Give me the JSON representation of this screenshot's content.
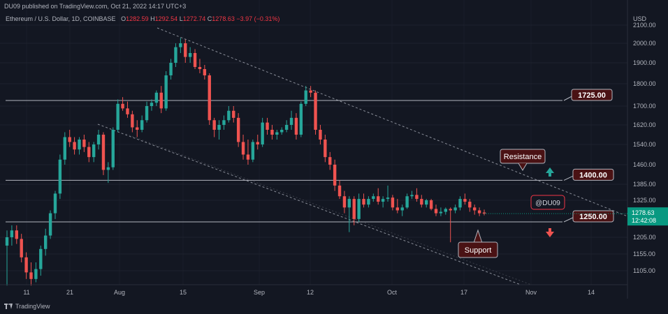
{
  "header": {
    "published": "DU09 published on TradingView.com, Oct 21, 2022 14:17 UTC+3",
    "symbol": "Ethereum / U.S. Dollar, 1D, COINBASE",
    "ohlc": {
      "o_label": "O",
      "o": "1282.59",
      "h_label": "H",
      "h": "1292.54",
      "l_label": "L",
      "l": "1272.74",
      "c_label": "C",
      "c": "1278.63",
      "change": "−3.97 (−0.31%)"
    }
  },
  "footer": {
    "brand": "TradingView"
  },
  "chart_data": {
    "type": "candlestick",
    "currency": "USD",
    "y_ticks": [
      "2100.00",
      "2000.00",
      "1900.00",
      "1800.00",
      "1700.00",
      "1620.00",
      "1540.00",
      "1460.00",
      "1385.00",
      "1325.00",
      "1205.00",
      "1155.00",
      "1105.00"
    ],
    "x_ticks": [
      "11",
      "21",
      "Aug",
      "15",
      "Sep",
      "12",
      "Oct",
      "17",
      "Nov",
      "14"
    ],
    "last_price": "1278.63",
    "countdown": "12:42:08",
    "levels": [
      {
        "label": "1725.00",
        "value": 1725
      },
      {
        "label": "1400.00",
        "value": 1400
      },
      {
        "label": "1250.00",
        "value": 1250
      }
    ],
    "callouts": [
      {
        "label": "Resistance"
      },
      {
        "label": "Support"
      }
    ],
    "watermark": "@DU09",
    "candles": [
      [
        1180,
        1225,
        1060,
        1205
      ],
      [
        1205,
        1240,
        1180,
        1225
      ],
      [
        1225,
        1240,
        1185,
        1200
      ],
      [
        1200,
        1215,
        1130,
        1145
      ],
      [
        1145,
        1160,
        1080,
        1100
      ],
      [
        1100,
        1130,
        1060,
        1080
      ],
      [
        1080,
        1130,
        1070,
        1110
      ],
      [
        1110,
        1180,
        1090,
        1170
      ],
      [
        1170,
        1230,
        1150,
        1210
      ],
      [
        1210,
        1290,
        1200,
        1280
      ],
      [
        1280,
        1360,
        1260,
        1350
      ],
      [
        1350,
        1500,
        1330,
        1480
      ],
      [
        1480,
        1590,
        1460,
        1570
      ],
      [
        1570,
        1600,
        1530,
        1550
      ],
      [
        1550,
        1570,
        1500,
        1520
      ],
      [
        1520,
        1570,
        1500,
        1560
      ],
      [
        1560,
        1580,
        1510,
        1530
      ],
      [
        1530,
        1550,
        1470,
        1490
      ],
      [
        1490,
        1550,
        1470,
        1540
      ],
      [
        1540,
        1600,
        1520,
        1580
      ],
      [
        1580,
        1590,
        1420,
        1440
      ],
      [
        1440,
        1470,
        1390,
        1450
      ],
      [
        1450,
        1610,
        1440,
        1600
      ],
      [
        1600,
        1730,
        1590,
        1710
      ],
      [
        1710,
        1740,
        1680,
        1690
      ],
      [
        1690,
        1720,
        1650,
        1665
      ],
      [
        1665,
        1680,
        1590,
        1610
      ],
      [
        1610,
        1640,
        1570,
        1600
      ],
      [
        1600,
        1660,
        1590,
        1640
      ],
      [
        1640,
        1720,
        1630,
        1700
      ],
      [
        1700,
        1730,
        1680,
        1715
      ],
      [
        1715,
        1770,
        1700,
        1760
      ],
      [
        1760,
        1790,
        1670,
        1690
      ],
      [
        1690,
        1860,
        1680,
        1840
      ],
      [
        1840,
        1920,
        1820,
        1900
      ],
      [
        1900,
        2000,
        1880,
        1980
      ],
      [
        1980,
        2030,
        1950,
        2000
      ],
      [
        2000,
        2020,
        1900,
        1930
      ],
      [
        1930,
        1980,
        1900,
        1950
      ],
      [
        1950,
        1970,
        1870,
        1880
      ],
      [
        1880,
        1920,
        1850,
        1870
      ],
      [
        1870,
        1890,
        1820,
        1840
      ],
      [
        1840,
        1850,
        1620,
        1640
      ],
      [
        1640,
        1650,
        1570,
        1600
      ],
      [
        1600,
        1640,
        1560,
        1620
      ],
      [
        1620,
        1660,
        1600,
        1640
      ],
      [
        1640,
        1700,
        1630,
        1680
      ],
      [
        1680,
        1700,
        1630,
        1650
      ],
      [
        1650,
        1670,
        1530,
        1550
      ],
      [
        1550,
        1580,
        1480,
        1500
      ],
      [
        1500,
        1560,
        1460,
        1480
      ],
      [
        1480,
        1560,
        1470,
        1550
      ],
      [
        1550,
        1580,
        1520,
        1540
      ],
      [
        1540,
        1650,
        1530,
        1630
      ],
      [
        1630,
        1650,
        1580,
        1600
      ],
      [
        1600,
        1620,
        1560,
        1580
      ],
      [
        1580,
        1600,
        1560,
        1590
      ],
      [
        1590,
        1610,
        1580,
        1600
      ],
      [
        1600,
        1640,
        1590,
        1620
      ],
      [
        1620,
        1680,
        1600,
        1650
      ],
      [
        1650,
        1670,
        1560,
        1580
      ],
      [
        1580,
        1720,
        1570,
        1710
      ],
      [
        1710,
        1790,
        1700,
        1770
      ],
      [
        1770,
        1790,
        1740,
        1760
      ],
      [
        1760,
        1770,
        1580,
        1600
      ],
      [
        1600,
        1620,
        1540,
        1560
      ],
      [
        1560,
        1580,
        1470,
        1490
      ],
      [
        1490,
        1510,
        1440,
        1460
      ],
      [
        1460,
        1480,
        1360,
        1380
      ],
      [
        1380,
        1400,
        1330,
        1340
      ],
      [
        1340,
        1360,
        1280,
        1300
      ],
      [
        1300,
        1340,
        1220,
        1330
      ],
      [
        1330,
        1340,
        1240,
        1260
      ],
      [
        1260,
        1350,
        1250,
        1330
      ],
      [
        1330,
        1350,
        1300,
        1310
      ],
      [
        1310,
        1340,
        1300,
        1330
      ],
      [
        1330,
        1350,
        1320,
        1340
      ],
      [
        1340,
        1370,
        1310,
        1320
      ],
      [
        1320,
        1340,
        1300,
        1330
      ],
      [
        1330,
        1380,
        1320,
        1335
      ],
      [
        1335,
        1345,
        1290,
        1300
      ],
      [
        1300,
        1330,
        1280,
        1290
      ],
      [
        1290,
        1310,
        1270,
        1300
      ],
      [
        1300,
        1350,
        1295,
        1340
      ],
      [
        1340,
        1360,
        1330,
        1345
      ],
      [
        1345,
        1370,
        1320,
        1330
      ],
      [
        1330,
        1345,
        1300,
        1310
      ],
      [
        1310,
        1330,
        1300,
        1325
      ],
      [
        1325,
        1330,
        1290,
        1295
      ],
      [
        1295,
        1310,
        1270,
        1280
      ],
      [
        1280,
        1300,
        1270,
        1285
      ],
      [
        1285,
        1300,
        1275,
        1295
      ],
      [
        1295,
        1300,
        1190,
        1290
      ],
      [
        1290,
        1310,
        1280,
        1300
      ],
      [
        1300,
        1340,
        1290,
        1330
      ],
      [
        1330,
        1350,
        1310,
        1320
      ],
      [
        1320,
        1330,
        1285,
        1300
      ],
      [
        1300,
        1310,
        1275,
        1290
      ],
      [
        1290,
        1300,
        1270,
        1280
      ],
      [
        1282.59,
        1292.54,
        1272.74,
        1278.63
      ]
    ]
  }
}
